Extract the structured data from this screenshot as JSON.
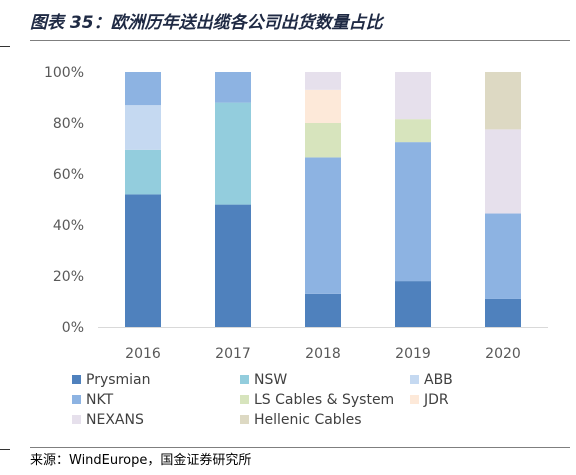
{
  "figure": {
    "title": "图表 35：欧洲历年送出缆各公司出货数量占比",
    "source": "来源：WindEurope，国金证券研究所"
  },
  "chart_data": {
    "type": "bar",
    "stacked": true,
    "normalized_percent": true,
    "title": "",
    "xlabel": "",
    "ylabel": "",
    "ylim": [
      0,
      100
    ],
    "yticks": [
      "0%",
      "20%",
      "40%",
      "60%",
      "80%",
      "100%"
    ],
    "categories": [
      "2016",
      "2017",
      "2018",
      "2019",
      "2020"
    ],
    "legend_position": "bottom",
    "grid": false,
    "series": [
      {
        "name": "Prysmian",
        "color": "#4f81bd",
        "values": [
          52,
          48,
          13,
          18,
          11
        ]
      },
      {
        "name": "NSW",
        "color": "#93cddd",
        "values": [
          17.5,
          40,
          0,
          0,
          0
        ]
      },
      {
        "name": "ABB",
        "color": "#c5d9f1",
        "values": [
          17.5,
          0,
          0,
          0,
          0
        ]
      },
      {
        "name": "NKT",
        "color": "#8db3e2",
        "values": [
          13,
          12,
          53.5,
          54.5,
          33.5
        ]
      },
      {
        "name": "LS Cables & System",
        "color": "#d7e4bd",
        "values": [
          0,
          0,
          13.5,
          9,
          0
        ]
      },
      {
        "name": "JDR",
        "color": "#fde9d9",
        "values": [
          0,
          0,
          13,
          0,
          0
        ]
      },
      {
        "name": "NEXANS",
        "color": "#e6e0ec",
        "values": [
          0,
          0,
          7,
          18.5,
          33
        ]
      },
      {
        "name": "Hellenic Cables",
        "color": "#ddd9c3",
        "values": [
          0,
          0,
          0,
          0,
          22.5
        ]
      }
    ]
  }
}
